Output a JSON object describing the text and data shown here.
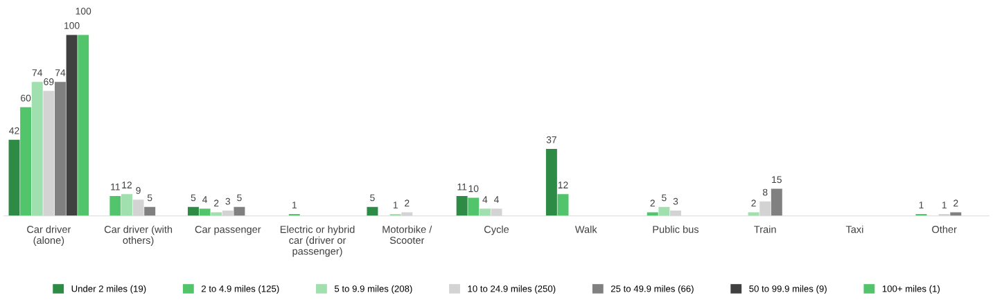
{
  "chart_data": {
    "type": "bar",
    "categories": [
      "Car driver\n(alone)",
      "Car driver (with\nothers)",
      "Car passenger",
      "Electric or hybrid\ncar (driver or\npassenger)",
      "Motorbike /\nScooter",
      "Cycle",
      "Walk",
      "Public bus",
      "Train",
      "Taxi",
      "Other"
    ],
    "series": [
      {
        "name": "Under 2 miles (19)",
        "color": "#2e8b45",
        "values": [
          42,
          null,
          5,
          null,
          5,
          11,
          37,
          null,
          null,
          null,
          null
        ]
      },
      {
        "name": "2 to 4.9 miles (125)",
        "color": "#52c46c",
        "values": [
          60,
          11,
          4,
          1,
          null,
          10,
          12,
          2,
          null,
          null,
          1
        ]
      },
      {
        "name": "5 to 9.9 miles (208)",
        "color": "#a0dfae",
        "values": [
          74,
          12,
          2,
          null,
          1,
          4,
          null,
          5,
          2,
          null,
          null
        ]
      },
      {
        "name": "10 to 24.9 miles (250)",
        "color": "#d3d3d3",
        "values": [
          69,
          9,
          3,
          null,
          2,
          4,
          null,
          3,
          8,
          null,
          1
        ]
      },
      {
        "name": "25 to 49.9 miles (66)",
        "color": "#808080",
        "values": [
          74,
          5,
          5,
          null,
          null,
          null,
          null,
          null,
          15,
          null,
          2
        ]
      },
      {
        "name": "50 to 99.9 miles (9)",
        "color": "#404040",
        "values": [
          100,
          null,
          null,
          null,
          null,
          null,
          null,
          null,
          null,
          null,
          null
        ]
      },
      {
        "name": "100+ miles (1)",
        "color": "#52c46c",
        "values": [
          100,
          null,
          null,
          null,
          null,
          null,
          null,
          null,
          null,
          null,
          null
        ]
      }
    ],
    "ylim": [
      0,
      100
    ],
    "data_labels": true,
    "legend": "bottom",
    "grid": false
  }
}
